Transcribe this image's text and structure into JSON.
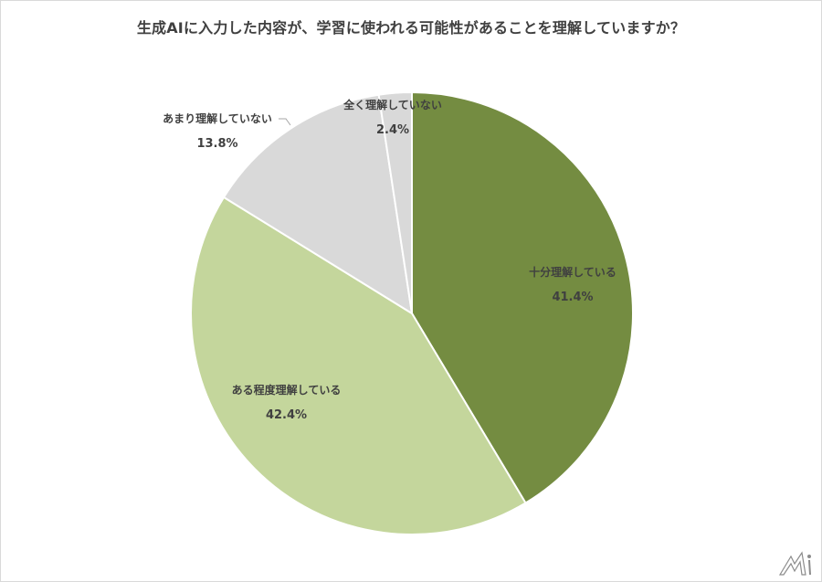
{
  "title": "生成AIに入力した内容が、学習に使われる可能性があることを理解していますか？",
  "chart_data": {
    "type": "pie",
    "title": "生成AIに入力した内容が、学習に使われる可能性があることを理解していますか？",
    "categories": [
      "十分理解している",
      "ある程度理解している",
      "あまり理解していない",
      "全く理解していない"
    ],
    "values": [
      41.4,
      42.4,
      13.8,
      2.4
    ],
    "colors": [
      "#748c41",
      "#c4d69c",
      "#d9d9d9",
      "#d9d9d9"
    ],
    "start_angle": "12 o'clock, clockwise",
    "legend": "none (data labels)"
  },
  "labels": [
    {
      "name": "十分理解している",
      "pct": "41.4%"
    },
    {
      "name": "ある程度理解している",
      "pct": "42.4%"
    },
    {
      "name": "あまり理解していない",
      "pct": "13.8%"
    },
    {
      "name": "全く理解していない",
      "pct": "2.4%"
    }
  ],
  "logo": "ai-logo"
}
